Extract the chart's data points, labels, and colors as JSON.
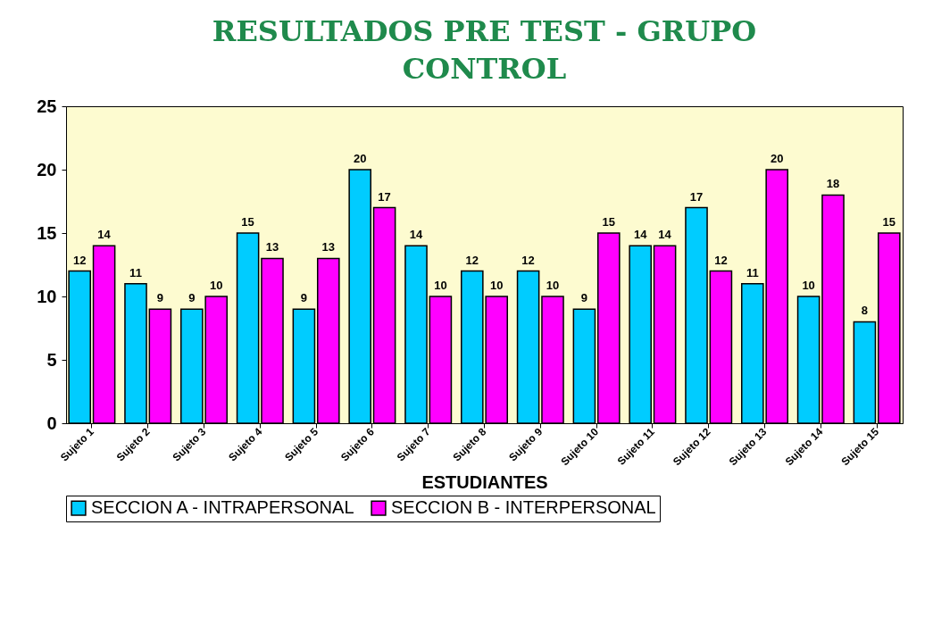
{
  "chart_data": {
    "type": "bar",
    "title": "RESULTADOS PRE TEST - GRUPO CONTROL",
    "xlabel": "ESTUDIANTES",
    "categories": [
      "Sujeto 1",
      "Sujeto 2",
      "Sujeto 3",
      "Sujeto 4",
      "Sujeto 5",
      "Sujeto 6",
      "Sujeto 7",
      "Sujeto 8",
      "Sujeto 9",
      "Sujeto 10",
      "Sujeto 11",
      "Sujeto 12",
      "Sujeto 13",
      "Sujeto 14",
      "Sujeto 15"
    ],
    "series": [
      {
        "name": "SECCION A - INTRAPERSONAL",
        "color": "#00ccff",
        "values": [
          12,
          11,
          9,
          15,
          9,
          20,
          14,
          12,
          12,
          9,
          14,
          17,
          11,
          10,
          8
        ]
      },
      {
        "name": "SECCION B - INTERPERSONAL",
        "color": "#ff00ff",
        "values": [
          14,
          9,
          10,
          13,
          13,
          17,
          10,
          10,
          10,
          15,
          14,
          12,
          20,
          18,
          15
        ]
      }
    ],
    "ylim": [
      0,
      25
    ],
    "yticks": [
      0,
      5,
      10,
      15,
      20,
      25
    ],
    "grid": false,
    "legend": "bottom",
    "data_labels": true
  }
}
